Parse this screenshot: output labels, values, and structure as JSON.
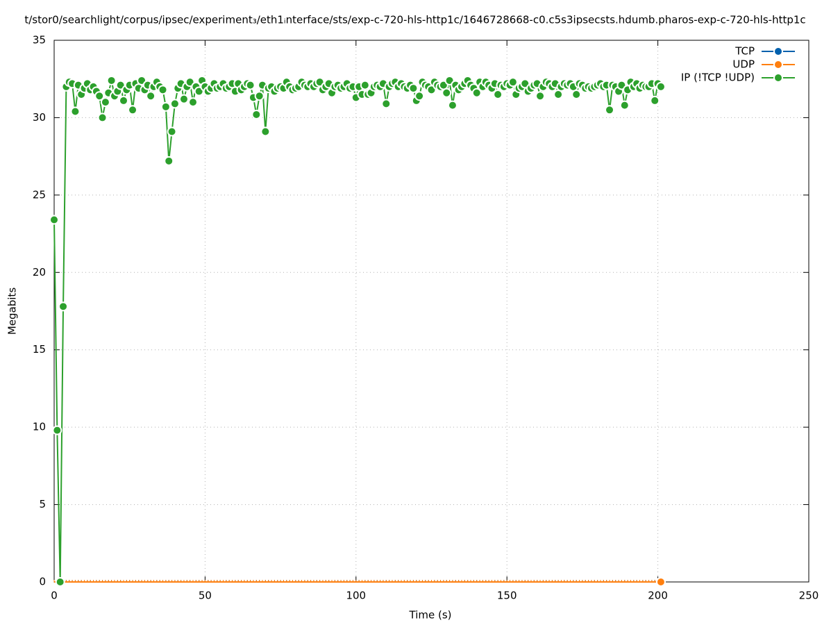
{
  "chart_data": {
    "type": "line",
    "title": "t/stor0/searchlight/corpus/ipsec/experiment₃/eth1ᵢnterface/sts/exp-c-720-hls-http1c/1646728668-c0.c5s3ipsecsts.hdumb.pharos-exp-c-720-hls-http1c",
    "x_label": "Time (s)",
    "y_label": "Megabits",
    "xlim": [
      0,
      250
    ],
    "xticks": [
      0,
      50,
      100,
      150,
      200,
      250
    ],
    "ylim": [
      0,
      35
    ],
    "yticks": [
      0,
      5,
      10,
      15,
      20,
      25,
      30,
      35
    ],
    "grid": true,
    "legend": "top-right",
    "x": [
      0,
      1,
      2,
      3,
      4,
      5,
      6,
      7,
      8,
      9,
      10,
      11,
      12,
      13,
      14,
      15,
      16,
      17,
      18,
      19,
      20,
      21,
      22,
      23,
      24,
      25,
      26,
      27,
      28,
      29,
      30,
      31,
      32,
      33,
      34,
      35,
      36,
      37,
      38,
      39,
      40,
      41,
      42,
      43,
      44,
      45,
      46,
      47,
      48,
      49,
      50,
      51,
      52,
      53,
      54,
      55,
      56,
      57,
      58,
      59,
      60,
      61,
      62,
      63,
      64,
      65,
      66,
      67,
      68,
      69,
      70,
      71,
      72,
      73,
      74,
      75,
      76,
      77,
      78,
      79,
      80,
      81,
      82,
      83,
      84,
      85,
      86,
      87,
      88,
      89,
      90,
      91,
      92,
      93,
      94,
      95,
      96,
      97,
      98,
      99,
      100,
      101,
      102,
      103,
      104,
      105,
      106,
      107,
      108,
      109,
      110,
      111,
      112,
      113,
      114,
      115,
      116,
      117,
      118,
      119,
      120,
      121,
      122,
      123,
      124,
      125,
      126,
      127,
      128,
      129,
      130,
      131,
      132,
      133,
      134,
      135,
      136,
      137,
      138,
      139,
      140,
      141,
      142,
      143,
      144,
      145,
      146,
      147,
      148,
      149,
      150,
      151,
      152,
      153,
      154,
      155,
      156,
      157,
      158,
      159,
      160,
      161,
      162,
      163,
      164,
      165,
      166,
      167,
      168,
      169,
      170,
      171,
      172,
      173,
      174,
      175,
      176,
      177,
      178,
      179,
      180,
      181,
      182,
      183,
      184,
      185,
      186,
      187,
      188,
      189,
      190,
      191,
      192,
      193,
      194,
      195,
      196,
      197,
      198,
      199,
      200,
      201
    ],
    "series": [
      {
        "name": "TCP",
        "color": "#0060ad",
        "values": [
          0,
          0,
          0,
          0,
          0,
          0,
          0,
          0,
          0,
          0,
          0,
          0,
          0,
          0,
          0,
          0,
          0,
          0,
          0,
          0,
          0,
          0,
          0,
          0,
          0,
          0,
          0,
          0,
          0,
          0,
          0,
          0,
          0,
          0,
          0,
          0,
          0,
          0,
          0,
          0,
          0,
          0,
          0,
          0,
          0,
          0,
          0,
          0,
          0,
          0,
          0,
          0,
          0,
          0,
          0,
          0,
          0,
          0,
          0,
          0,
          0,
          0,
          0,
          0,
          0,
          0,
          0,
          0,
          0,
          0,
          0,
          0,
          0,
          0,
          0,
          0,
          0,
          0,
          0,
          0,
          0,
          0,
          0,
          0,
          0,
          0,
          0,
          0,
          0,
          0,
          0,
          0,
          0,
          0,
          0,
          0,
          0,
          0,
          0,
          0,
          0,
          0,
          0,
          0,
          0,
          0,
          0,
          0,
          0,
          0,
          0,
          0,
          0,
          0,
          0,
          0,
          0,
          0,
          0,
          0,
          0,
          0,
          0,
          0,
          0,
          0,
          0,
          0,
          0,
          0,
          0,
          0,
          0,
          0,
          0,
          0,
          0,
          0,
          0,
          0,
          0,
          0,
          0,
          0,
          0,
          0,
          0,
          0,
          0,
          0,
          0,
          0,
          0,
          0,
          0,
          0,
          0,
          0,
          0,
          0,
          0,
          0,
          0,
          0,
          0,
          0,
          0,
          0,
          0,
          0,
          0,
          0,
          0,
          0,
          0,
          0,
          0,
          0,
          0,
          0,
          0,
          0,
          0,
          0,
          0,
          0,
          0,
          0,
          0,
          0,
          0,
          0,
          0,
          0,
          0,
          0,
          0,
          0,
          0,
          0,
          0,
          0
        ]
      },
      {
        "name": "UDP",
        "color": "#ff7f0e",
        "values": [
          0,
          0,
          0,
          0,
          0,
          0,
          0,
          0,
          0,
          0,
          0,
          0,
          0,
          0,
          0,
          0,
          0,
          0,
          0,
          0,
          0,
          0,
          0,
          0,
          0,
          0,
          0,
          0,
          0,
          0,
          0,
          0,
          0,
          0,
          0,
          0,
          0,
          0,
          0,
          0,
          0,
          0,
          0,
          0,
          0,
          0,
          0,
          0,
          0,
          0,
          0,
          0,
          0,
          0,
          0,
          0,
          0,
          0,
          0,
          0,
          0,
          0,
          0,
          0,
          0,
          0,
          0,
          0,
          0,
          0,
          0,
          0,
          0,
          0,
          0,
          0,
          0,
          0,
          0,
          0,
          0,
          0,
          0,
          0,
          0,
          0,
          0,
          0,
          0,
          0,
          0,
          0,
          0,
          0,
          0,
          0,
          0,
          0,
          0,
          0,
          0,
          0,
          0,
          0,
          0,
          0,
          0,
          0,
          0,
          0,
          0,
          0,
          0,
          0,
          0,
          0,
          0,
          0,
          0,
          0,
          0,
          0,
          0,
          0,
          0,
          0,
          0,
          0,
          0,
          0,
          0,
          0,
          0,
          0,
          0,
          0,
          0,
          0,
          0,
          0,
          0,
          0,
          0,
          0,
          0,
          0,
          0,
          0,
          0,
          0,
          0,
          0,
          0,
          0,
          0,
          0,
          0,
          0,
          0,
          0,
          0,
          0,
          0,
          0,
          0,
          0,
          0,
          0,
          0,
          0,
          0,
          0,
          0,
          0,
          0,
          0,
          0,
          0,
          0,
          0,
          0,
          0,
          0,
          0,
          0,
          0,
          0,
          0,
          0,
          0,
          0,
          0,
          0,
          0,
          0,
          0,
          0,
          0,
          0,
          0,
          0,
          0
        ]
      },
      {
        "name": "IP (!TCP  !UDP)",
        "color": "#2ca02c",
        "values": [
          23.4,
          9.8,
          0,
          17.8,
          32.0,
          32.3,
          32.2,
          30.4,
          32.1,
          31.5,
          31.9,
          32.2,
          31.8,
          32.0,
          31.7,
          31.4,
          30.0,
          31.0,
          31.6,
          32.4,
          31.4,
          31.7,
          32.1,
          31.1,
          31.8,
          32.1,
          30.5,
          32.2,
          31.9,
          32.4,
          31.8,
          32.1,
          31.4,
          32.0,
          32.3,
          32.0,
          31.8,
          30.7,
          27.2,
          29.1,
          30.9,
          31.9,
          32.2,
          31.2,
          32.0,
          32.3,
          31.0,
          32.0,
          31.7,
          32.4,
          32.0,
          31.7,
          31.9,
          32.2,
          31.9,
          32.0,
          32.2,
          31.9,
          32.0,
          32.2,
          31.7,
          32.2,
          31.8,
          32.0,
          32.2,
          32.1,
          31.3,
          30.2,
          31.4,
          32.1,
          29.1,
          31.9,
          32.0,
          31.7,
          31.9,
          32.0,
          31.9,
          32.3,
          32.0,
          31.8,
          31.9,
          32.0,
          32.3,
          32.1,
          32.0,
          32.2,
          32.0,
          32.2,
          32.3,
          31.8,
          32.0,
          32.2,
          31.6,
          32.0,
          32.1,
          31.9,
          32.0,
          32.2,
          31.9,
          32.0,
          31.3,
          32.0,
          31.5,
          32.1,
          31.5,
          31.6,
          32.0,
          32.1,
          32.0,
          32.2,
          30.9,
          32.0,
          32.2,
          32.3,
          32.0,
          32.2,
          32.0,
          31.9,
          32.1,
          31.9,
          31.1,
          31.4,
          32.3,
          32.1,
          32.0,
          31.8,
          32.3,
          32.1,
          32.0,
          32.1,
          31.6,
          32.4,
          30.8,
          32.1,
          31.8,
          32.0,
          32.2,
          32.4,
          32.1,
          31.9,
          31.6,
          32.3,
          32.0,
          32.3,
          32.1,
          31.9,
          32.2,
          31.5,
          32.1,
          32.0,
          32.2,
          32.1,
          32.3,
          31.5,
          31.9,
          32.0,
          32.2,
          31.7,
          31.9,
          32.1,
          32.2,
          31.4,
          32.0,
          32.3,
          32.2,
          32.0,
          32.2,
          31.5,
          32.0,
          32.2,
          32.1,
          32.2,
          32.0,
          31.5,
          32.2,
          32.1,
          31.9,
          32.0,
          31.9,
          32.0,
          32.1,
          32.2,
          32.0,
          32.1,
          30.5,
          32.1,
          32.0,
          31.7,
          32.1,
          30.8,
          31.8,
          32.3,
          32.0,
          32.2,
          31.9,
          32.1,
          32.0,
          32.0,
          32.2,
          31.1,
          32.2,
          32.0
        ]
      }
    ]
  }
}
